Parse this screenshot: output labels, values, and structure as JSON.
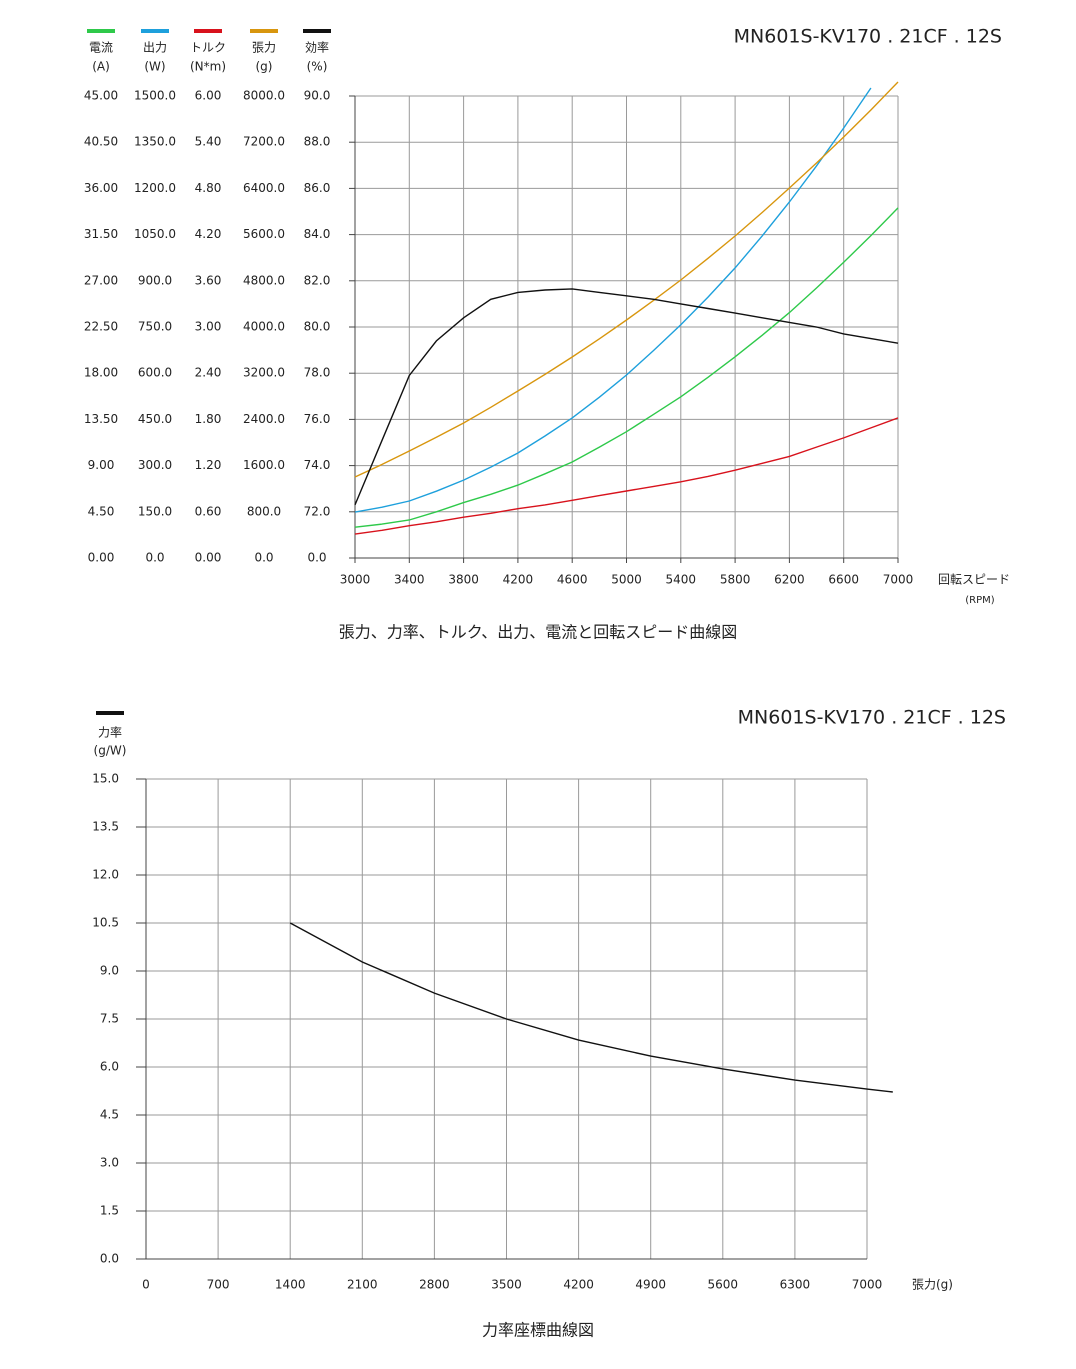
{
  "chart_data": [
    {
      "type": "line",
      "title": "MN601S-KV170 . 21CF . 12S",
      "x_label": "回転スピード",
      "x_unit": "(RPM)",
      "caption": "張力、力率、トルク、出力、電流と回転スピード曲線図",
      "x": [
        3000,
        3200,
        3400,
        3600,
        3800,
        4000,
        4200,
        4400,
        4600,
        4800,
        5000,
        5200,
        5400,
        5600,
        5800,
        6000,
        6200,
        6400,
        6600,
        6800,
        7000
      ],
      "xlim": [
        3000,
        7000
      ],
      "xticks": [
        3000,
        3400,
        3800,
        4200,
        4600,
        5000,
        5400,
        5800,
        6200,
        6600,
        7000
      ],
      "grid": true,
      "series": [
        {
          "name": "電流",
          "unit": "(A)",
          "color": "#2ec94a",
          "values": [
            3.0,
            3.3,
            3.7,
            4.5,
            5.4,
            6.2,
            7.1,
            8.2,
            9.35,
            10.8,
            12.3,
            14.0,
            15.7,
            17.6,
            19.6,
            21.7,
            23.9,
            26.3,
            28.8,
            31.4,
            34.1
          ],
          "ylim": [
            0,
            45
          ],
          "yticks": [
            {
              "value": 0,
              "label": "0.00"
            },
            {
              "value": 4.5,
              "label": "4.50"
            },
            {
              "value": 9,
              "label": "9.00"
            },
            {
              "value": 13.5,
              "label": "13.50"
            },
            {
              "value": 18,
              "label": "18.00"
            },
            {
              "value": 22.5,
              "label": "22.50"
            },
            {
              "value": 27,
              "label": "27.00"
            },
            {
              "value": 31.5,
              "label": "31.50"
            },
            {
              "value": 36,
              "label": "36.00"
            },
            {
              "value": 40.5,
              "label": "40.50"
            },
            {
              "value": 45,
              "label": "45.00"
            }
          ]
        },
        {
          "name": "出力",
          "unit": "(W)",
          "color": "#1ea0dc",
          "values": [
            149,
            165,
            185,
            217,
            253,
            295,
            341,
            396,
            455,
            522,
            594,
            674,
            757,
            847,
            942,
            1046,
            1156,
            1273,
            1396,
            1526,
            null
          ],
          "ylim": [
            0,
            1500
          ],
          "yticks": [
            {
              "value": 0,
              "label": "0.0"
            },
            {
              "value": 150,
              "label": "150.0"
            },
            {
              "value": 300,
              "label": "300.0"
            },
            {
              "value": 450,
              "label": "450.0"
            },
            {
              "value": 600,
              "label": "600.0"
            },
            {
              "value": 750,
              "label": "750.0"
            },
            {
              "value": 900,
              "label": "900.0"
            },
            {
              "value": 1050,
              "label": "1050.0"
            },
            {
              "value": 1200,
              "label": "1200.0"
            },
            {
              "value": 1350,
              "label": "1350.0"
            },
            {
              "value": 1500,
              "label": "1500.0"
            }
          ]
        },
        {
          "name": "トルク",
          "unit": "(N*m)",
          "color": "#d8121c",
          "values": [
            0.31,
            0.36,
            0.42,
            0.47,
            0.53,
            0.58,
            0.64,
            0.69,
            0.75,
            0.81,
            0.87,
            0.93,
            0.99,
            1.06,
            1.14,
            1.23,
            1.32,
            1.44,
            1.56,
            1.69,
            1.82
          ],
          "ylim": [
            0,
            6
          ],
          "yticks": [
            {
              "value": 0,
              "label": "0.00"
            },
            {
              "value": 0.6,
              "label": "0.60"
            },
            {
              "value": 1.2,
              "label": "1.20"
            },
            {
              "value": 1.8,
              "label": "1.80"
            },
            {
              "value": 2.4,
              "label": "2.40"
            },
            {
              "value": 3,
              "label": "3.00"
            },
            {
              "value": 3.6,
              "label": "3.60"
            },
            {
              "value": 4.2,
              "label": "4.20"
            },
            {
              "value": 4.8,
              "label": "4.80"
            },
            {
              "value": 5.4,
              "label": "5.40"
            },
            {
              "value": 6,
              "label": "6.00"
            }
          ]
        },
        {
          "name": "張力",
          "unit": "(g)",
          "color": "#d8960e",
          "values": [
            1403,
            1620,
            1853,
            2090,
            2338,
            2610,
            2892,
            3180,
            3481,
            3795,
            4121,
            4462,
            4814,
            5190,
            5576,
            5985,
            6407,
            6840,
            7290,
            7758,
            8242
          ],
          "ylim": [
            0,
            8000
          ],
          "yticks": [
            {
              "value": 0,
              "label": "0.0"
            },
            {
              "value": 800,
              "label": "800.0"
            },
            {
              "value": 1600,
              "label": "1600.0"
            },
            {
              "value": 2400,
              "label": "2400.0"
            },
            {
              "value": 3200,
              "label": "3200.0"
            },
            {
              "value": 4000,
              "label": "4000.0"
            },
            {
              "value": 4800,
              "label": "4800.0"
            },
            {
              "value": 5600,
              "label": "5600.0"
            },
            {
              "value": 6400,
              "label": "6400.0"
            },
            {
              "value": 7200,
              "label": "7200.0"
            },
            {
              "value": 8000,
              "label": "8000.0"
            }
          ]
        },
        {
          "name": "効率",
          "unit": "(%)",
          "color": "#111111",
          "values": [
            72.3,
            75.1,
            77.9,
            79.4,
            80.4,
            81.2,
            81.5,
            81.6,
            81.65,
            81.5,
            81.35,
            81.2,
            81.0,
            80.8,
            80.6,
            80.4,
            80.2,
            80.0,
            79.7,
            79.5,
            79.3
          ],
          "ylim": [
            0,
            90
          ],
          "yticks": [
            {
              "value": 0,
              "label": "0.0"
            },
            {
              "value": 72,
              "label": "72.0"
            },
            {
              "value": 74,
              "label": "74.0"
            },
            {
              "value": 76,
              "label": "76.0"
            },
            {
              "value": 78,
              "label": "78.0"
            },
            {
              "value": 80,
              "label": "80.0"
            },
            {
              "value": 82,
              "label": "82.0"
            },
            {
              "value": 84,
              "label": "84.0"
            },
            {
              "value": 86,
              "label": "86.0"
            },
            {
              "value": 88,
              "label": "88.0"
            },
            {
              "value": 90,
              "label": "90.0"
            }
          ]
        }
      ]
    },
    {
      "type": "line",
      "title": "MN601S-KV170 . 21CF . 12S",
      "x_label": "張力(g)",
      "caption": "力率座標曲線図",
      "x": [
        1400,
        2100,
        2800,
        3500,
        4200,
        4900,
        5600,
        6300,
        7000,
        7250
      ],
      "xlim": [
        0,
        7000
      ],
      "xticks": [
        0,
        700,
        1400,
        2100,
        2800,
        3500,
        4200,
        4900,
        5600,
        6300,
        7000
      ],
      "grid": true,
      "ylim": [
        0,
        15
      ],
      "yticks": [
        {
          "value": 0,
          "label": "0.0"
        },
        1.5,
        {
          "value": 3,
          "label": "3.0"
        },
        4.5,
        {
          "value": 6,
          "label": "6.0"
        },
        7.5,
        {
          "value": 9,
          "label": "9.0"
        },
        10.5,
        {
          "value": 12,
          "label": "12.0"
        },
        13.5,
        {
          "value": 15,
          "label": "15.0"
        }
      ],
      "series": [
        {
          "name": "力率",
          "unit": "(g/W)",
          "color": "#111111",
          "values": [
            10.5,
            9.28,
            8.31,
            7.5,
            6.84,
            6.34,
            5.94,
            5.59,
            5.31,
            5.22
          ]
        }
      ]
    }
  ]
}
